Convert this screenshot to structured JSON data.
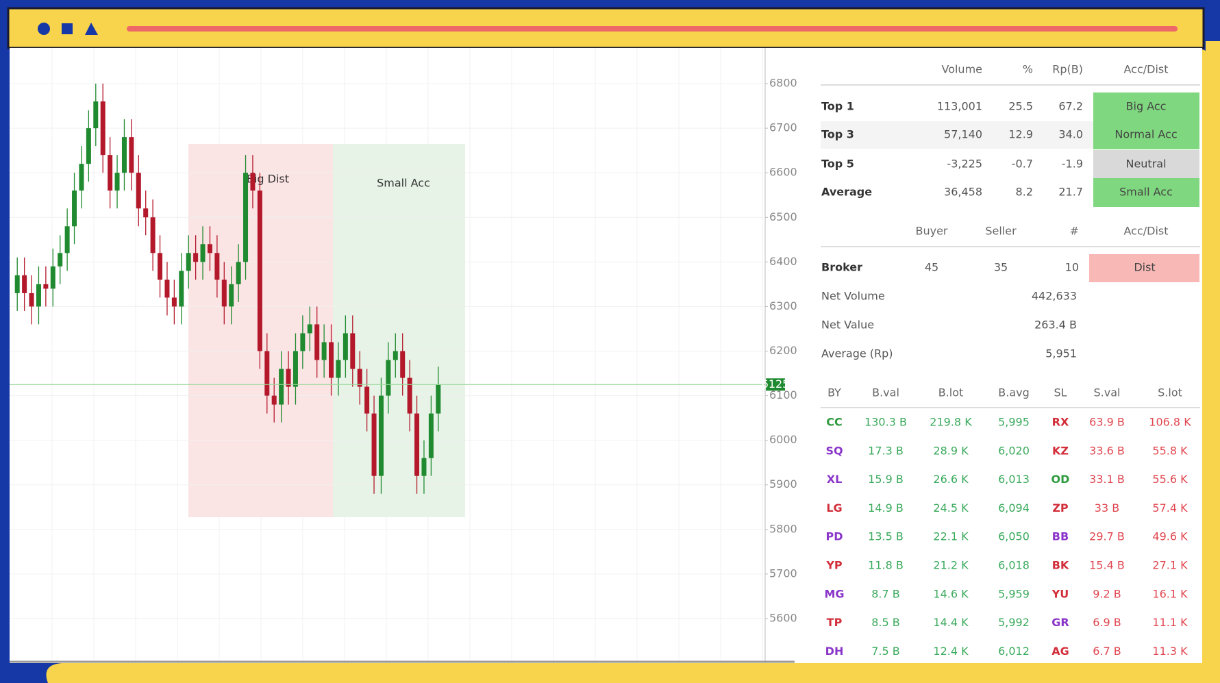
{
  "chart_data": {
    "type": "candlestick",
    "open": [
      6330,
      6370,
      6330,
      6300,
      6350,
      6340,
      6390,
      6420,
      6480,
      6560,
      6620,
      6700,
      6760,
      6640,
      6560,
      6600,
      6680,
      6600,
      6520,
      6500,
      6420,
      6360,
      6320,
      6300,
      6380,
      6420,
      6400,
      6440,
      6420,
      6360,
      6300,
      6350,
      6400,
      6600,
      6560,
      6200,
      6100,
      6080,
      6160,
      6120,
      6200,
      6240,
      6260,
      6180,
      6220,
      6140,
      6180,
      6240,
      6160,
      6120,
      6060,
      5920,
      6100,
      6180,
      6200,
      6140,
      6060,
      5920,
      5960,
      6060
    ],
    "high": [
      6410,
      6410,
      6370,
      6390,
      6390,
      6430,
      6460,
      6520,
      6600,
      6660,
      6740,
      6800,
      6800,
      6680,
      6640,
      6720,
      6720,
      6640,
      6560,
      6540,
      6460,
      6400,
      6360,
      6420,
      6460,
      6460,
      6480,
      6480,
      6460,
      6400,
      6390,
      6440,
      6640,
      6640,
      6600,
      6240,
      6140,
      6200,
      6200,
      6240,
      6280,
      6300,
      6300,
      6260,
      6260,
      6220,
      6280,
      6280,
      6200,
      6160,
      6100,
      6140,
      6220,
      6240,
      6240,
      6180,
      6100,
      6000,
      6100,
      6165
    ],
    "low": [
      6290,
      6290,
      6260,
      6260,
      6300,
      6300,
      6350,
      6380,
      6440,
      6520,
      6580,
      6660,
      6600,
      6520,
      6520,
      6560,
      6560,
      6480,
      6460,
      6380,
      6320,
      6280,
      6260,
      6260,
      6340,
      6360,
      6360,
      6380,
      6320,
      6260,
      6260,
      6310,
      6360,
      6520,
      6160,
      6060,
      6040,
      6040,
      6080,
      6080,
      6160,
      6200,
      6140,
      6140,
      6100,
      6100,
      6140,
      6120,
      6080,
      6020,
      5880,
      5880,
      6060,
      6140,
      6100,
      6020,
      5880,
      5880,
      5920,
      6020
    ],
    "close": [
      6370,
      6330,
      6300,
      6350,
      6340,
      6390,
      6420,
      6480,
      6560,
      6620,
      6700,
      6760,
      6640,
      6560,
      6600,
      6680,
      6600,
      6520,
      6500,
      6420,
      6360,
      6320,
      6300,
      6380,
      6420,
      6400,
      6440,
      6420,
      6360,
      6300,
      6350,
      6400,
      6600,
      6560,
      6200,
      6100,
      6080,
      6160,
      6120,
      6200,
      6240,
      6260,
      6180,
      6220,
      6140,
      6180,
      6240,
      6160,
      6120,
      6060,
      5920,
      6100,
      6180,
      6200,
      6140,
      6060,
      5920,
      5960,
      6060,
      6125
    ],
    "up_color": "#1f8a2f",
    "down_color": "#b3182b",
    "ylim": [
      5500,
      6880
    ],
    "yticks": [
      5600,
      5700,
      5800,
      5900,
      6000,
      6100,
      6200,
      6300,
      6400,
      6500,
      6600,
      6700,
      6800
    ],
    "grid": true,
    "last_price": 6125,
    "annotations": [
      {
        "text": "Big Dist",
        "color": "#fbe4e4"
      },
      {
        "text": "Small Acc",
        "color": "#e6f3e6"
      }
    ]
  },
  "summary_table": {
    "headers": [
      "Volume",
      "%",
      "Rp(B)",
      "Acc/Dist"
    ],
    "rows": [
      {
        "label": "Top 1",
        "cells": [
          "113,001",
          "25.5",
          "67.2"
        ],
        "status": "Big Acc",
        "status_color": "#7fd77f"
      },
      {
        "label": "Top 3",
        "cells": [
          "57,140",
          "12.9",
          "34.0"
        ],
        "status": "Normal Acc",
        "status_color": "#7fd77f"
      },
      {
        "label": "Top 5",
        "cells": [
          "-3,225",
          "-0.7",
          "-1.9"
        ],
        "status": "Neutral",
        "status_color": "#d9d9d9"
      },
      {
        "label": "Average",
        "cells": [
          "36,458",
          "8.2",
          "21.7"
        ],
        "status": "Small Acc",
        "status_color": "#7fd77f"
      }
    ]
  },
  "broker_table": {
    "headers": [
      "Buyer",
      "Seller",
      "#",
      "Acc/Dist"
    ],
    "row": {
      "label": "Broker",
      "cells": [
        "45",
        "35",
        "10"
      ],
      "status": "Dist",
      "status_color": "#f8b9b6"
    }
  },
  "stats": [
    {
      "label": "Net Volume",
      "value": "442,633"
    },
    {
      "label": "Net Value",
      "value": "263.4 B"
    },
    {
      "label": "Average (Rp)",
      "value": "5,951"
    }
  ],
  "broker_list": {
    "headers": [
      "BY",
      "B.val",
      "B.lot",
      "B.avg",
      "SL",
      "S.val",
      "S.lot"
    ],
    "buy_color": "#3aaa5c",
    "sell_color": "#e0464f",
    "rows": [
      {
        "by": "CC",
        "by_color": "#2f9a3f",
        "buy": [
          "130.3 B",
          "219.8 K",
          "5,995"
        ],
        "sl": "RX",
        "sl_color": "#d22f3a",
        "sell": [
          "63.9 B",
          "106.8 K"
        ]
      },
      {
        "by": "SQ",
        "by_color": "#8a35c9",
        "buy": [
          "17.3 B",
          "28.9 K",
          "6,020"
        ],
        "sl": "KZ",
        "sl_color": "#d22f3a",
        "sell": [
          "33.6 B",
          "55.8 K"
        ]
      },
      {
        "by": "XL",
        "by_color": "#8a35c9",
        "buy": [
          "15.9 B",
          "26.6 K",
          "6,013"
        ],
        "sl": "OD",
        "sl_color": "#2f9a3f",
        "sell": [
          "33.1 B",
          "55.6 K"
        ]
      },
      {
        "by": "LG",
        "by_color": "#d22f3a",
        "buy": [
          "14.9 B",
          "24.5 K",
          "6,094"
        ],
        "sl": "ZP",
        "sl_color": "#d22f3a",
        "sell": [
          "33 B",
          "57.4 K"
        ]
      },
      {
        "by": "PD",
        "by_color": "#8a35c9",
        "buy": [
          "13.5 B",
          "22.1 K",
          "6,050"
        ],
        "sl": "BB",
        "sl_color": "#8a35c9",
        "sell": [
          "29.7 B",
          "49.6 K"
        ]
      },
      {
        "by": "YP",
        "by_color": "#d22f3a",
        "buy": [
          "11.8 B",
          "21.2 K",
          "6,018"
        ],
        "sl": "BK",
        "sl_color": "#d22f3a",
        "sell": [
          "15.4 B",
          "27.1 K"
        ]
      },
      {
        "by": "MG",
        "by_color": "#8a35c9",
        "buy": [
          "8.7 B",
          "14.6 K",
          "5,959"
        ],
        "sl": "YU",
        "sl_color": "#d22f3a",
        "sell": [
          "9.2 B",
          "16.1 K"
        ]
      },
      {
        "by": "TP",
        "by_color": "#d22f3a",
        "buy": [
          "8.5 B",
          "14.4 K",
          "5,992"
        ],
        "sl": "GR",
        "sl_color": "#8a35c9",
        "sell": [
          "6.9 B",
          "11.1 K"
        ]
      },
      {
        "by": "DH",
        "by_color": "#8a35c9",
        "buy": [
          "7.5 B",
          "12.4 K",
          "6,012"
        ],
        "sl": "AG",
        "sl_color": "#d22f3a",
        "sell": [
          "6.7 B",
          "11.3 K"
        ]
      }
    ]
  }
}
